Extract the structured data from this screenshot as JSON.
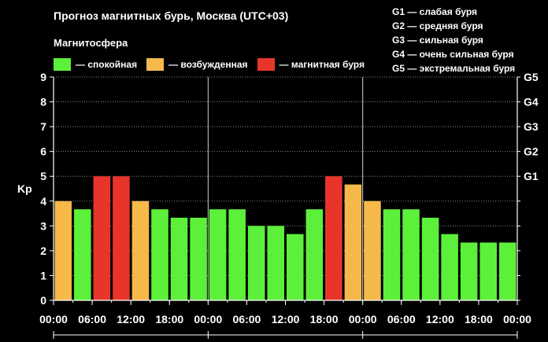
{
  "title": "Прогноз магнитных бурь, Москва (UTC+03)",
  "subtitle": "Магнитосфера",
  "legend": [
    {
      "label": "— спокойная",
      "color": "#5cf03a"
    },
    {
      "label": "— возбужденная",
      "color": "#f5b94a"
    },
    {
      "label": "— магнитная буря",
      "color": "#e8352c"
    }
  ],
  "g_legend": [
    "G1 — слабая буря",
    "G2 — средняя буря",
    "G3 — сильная буря",
    "G4 — очень сильная буря",
    "G5 — экстремальная буря"
  ],
  "chart_data": {
    "type": "bar",
    "ylabel": "Kp",
    "ylim": [
      0,
      9
    ],
    "y_ticks": [
      "0",
      "1",
      "2",
      "3",
      "4",
      "5",
      "6",
      "7",
      "8",
      "9"
    ],
    "right_ticks": [
      {
        "label": "G1",
        "y": 5
      },
      {
        "label": "G2",
        "y": 6
      },
      {
        "label": "G3",
        "y": 7
      },
      {
        "label": "G4",
        "y": 8
      },
      {
        "label": "G5",
        "y": 9
      }
    ],
    "x_ticks": [
      "00:00",
      "06:00",
      "12:00",
      "18:00",
      "00:00",
      "06:00",
      "12:00",
      "18:00",
      "00:00",
      "06:00",
      "12:00",
      "18:00",
      "00:00"
    ],
    "values": [
      4.0,
      3.67,
      5.0,
      5.0,
      4.0,
      3.67,
      3.33,
      3.33,
      3.67,
      3.67,
      3.0,
      3.0,
      2.67,
      3.67,
      5.0,
      4.67,
      4.0,
      3.67,
      3.67,
      3.33,
      2.67,
      2.33,
      2.33,
      2.33
    ],
    "colors": {
      "quiet": "#5cf03a",
      "active": "#f5b94a",
      "storm": "#e8352c"
    },
    "grid": true
  }
}
